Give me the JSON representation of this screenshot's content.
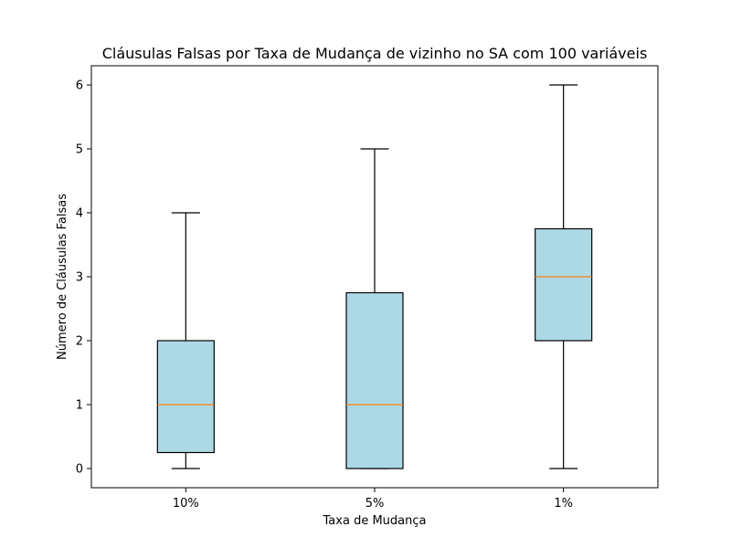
{
  "chart_data": {
    "type": "box",
    "title": "Cláusulas Falsas por Taxa de Mudança de vizinho no SA com 100 variáveis",
    "xlabel": "Taxa de Mudança",
    "ylabel": "Número de Cláusulas Falsas",
    "categories": [
      "10%",
      "5%",
      "1%"
    ],
    "boxes": [
      {
        "category": "10%",
        "whisker_low": 0,
        "q1": 0.25,
        "median": 1,
        "q3": 2,
        "whisker_high": 4
      },
      {
        "category": "5%",
        "whisker_low": 0,
        "q1": 0,
        "median": 1,
        "q3": 2.75,
        "whisker_high": 5
      },
      {
        "category": "1%",
        "whisker_low": 0,
        "q1": 2,
        "median": 3,
        "q3": 3.75,
        "whisker_high": 6
      }
    ],
    "ylim": [
      -0.3,
      6.3
    ],
    "yticks": [
      0,
      1,
      2,
      3,
      4,
      5,
      6
    ],
    "grid": false,
    "colors": {
      "box_fill": "#add8e6",
      "median": "#ff7f0e",
      "lines": "#000000"
    }
  }
}
